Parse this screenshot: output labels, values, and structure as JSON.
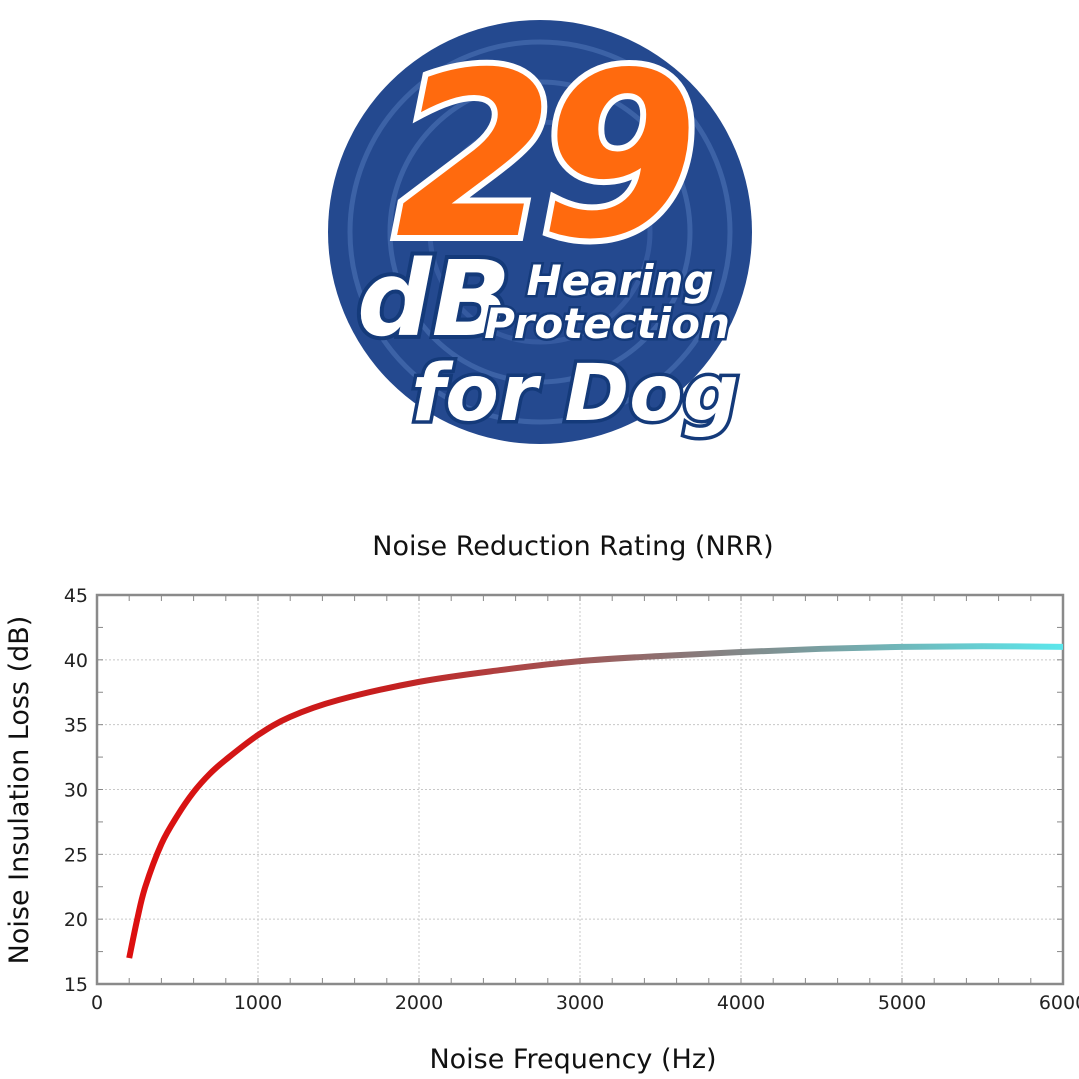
{
  "badge": {
    "number": "29",
    "unit": "dB",
    "line1": "Hearing",
    "line2": "Protection",
    "line3": "for Dog",
    "colors": {
      "circle": "#24498f",
      "number": "#ff6a0e",
      "outline": "#143a7a",
      "text": "#ffffff"
    }
  },
  "chart_data": {
    "type": "line",
    "title": "Noise Reduction Rating (NRR)",
    "xlabel": "Noise Frequency (Hz)",
    "ylabel": "Noise Insulation Loss (dB)",
    "xlim": [
      0,
      6000
    ],
    "ylim": [
      15,
      45
    ],
    "xticks": [
      0,
      1000,
      2000,
      3000,
      4000,
      5000,
      6000
    ],
    "yticks": [
      15,
      20,
      25,
      30,
      35,
      40,
      45
    ],
    "grid": true,
    "series": [
      {
        "x": [
          200,
          250,
          300,
          400,
          500,
          600,
          700,
          800,
          1000,
          1200,
          1500,
          2000,
          2500,
          3000,
          3500,
          4000,
          4500,
          5000,
          5500,
          6000
        ],
        "values": [
          17.0,
          20.0,
          22.5,
          25.8,
          28.0,
          29.8,
          31.2,
          32.3,
          34.2,
          35.6,
          36.9,
          38.3,
          39.2,
          39.9,
          40.3,
          40.6,
          40.85,
          41.0,
          41.05,
          41.0
        ],
        "colors": [
          "#e00d0d",
          "#5be7ec"
        ]
      }
    ]
  }
}
